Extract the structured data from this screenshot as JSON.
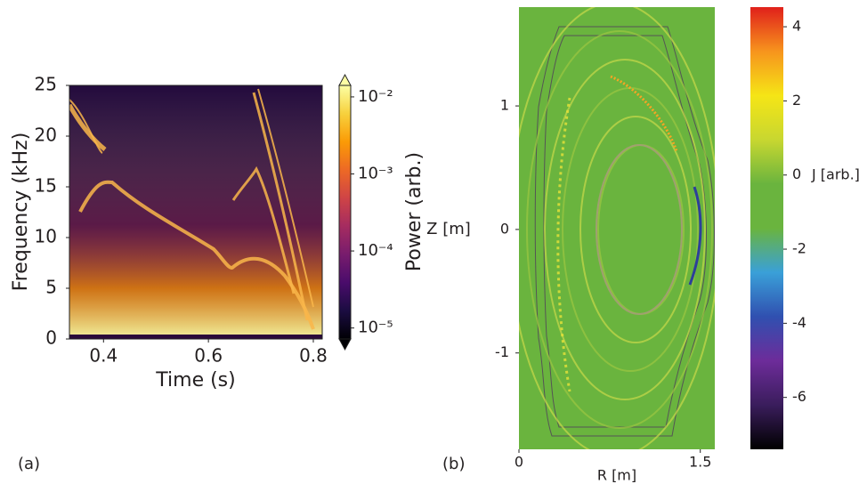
{
  "chart_data": [
    {
      "type": "spectrogram",
      "panel_label": "(a)",
      "xlabel": "Time (s)",
      "ylabel": "Frequency (kHz)",
      "xlim": [
        0.335,
        0.817
      ],
      "xticks": [
        0.4,
        0.6,
        0.8
      ],
      "ylim": [
        0,
        25
      ],
      "yticks": [
        0,
        5,
        10,
        15,
        20,
        25
      ],
      "colorbar": {
        "label": "Power (arb.)",
        "scale": "log",
        "colormap": "inferno",
        "clim": [
          7.2e-06,
          0.0141
        ],
        "ticks": [
          {
            "value": 0.01,
            "label": "10⁻²"
          },
          {
            "value": 0.001,
            "label": "10⁻³"
          },
          {
            "value": 0.0001,
            "label": "10⁻⁴"
          },
          {
            "value": 1e-05,
            "label": "10⁻⁵"
          }
        ]
      }
    },
    {
      "type": "heatmap",
      "panel_label": "(b)",
      "xlabel": "R [m]",
      "ylabel": "Z [m]",
      "xlim": [
        0,
        1.62
      ],
      "xticks": [
        0,
        1.5
      ],
      "ylim": [
        -1.78,
        1.8
      ],
      "yticks": [
        -1,
        0,
        1
      ],
      "colorbar": {
        "label": "J [arb.]",
        "scale": "linear",
        "colormap": "rainbow",
        "clim": [
          -7.4,
          4.53
        ],
        "ticks": [
          4,
          2,
          0,
          -2,
          -4,
          -6
        ]
      }
    }
  ]
}
